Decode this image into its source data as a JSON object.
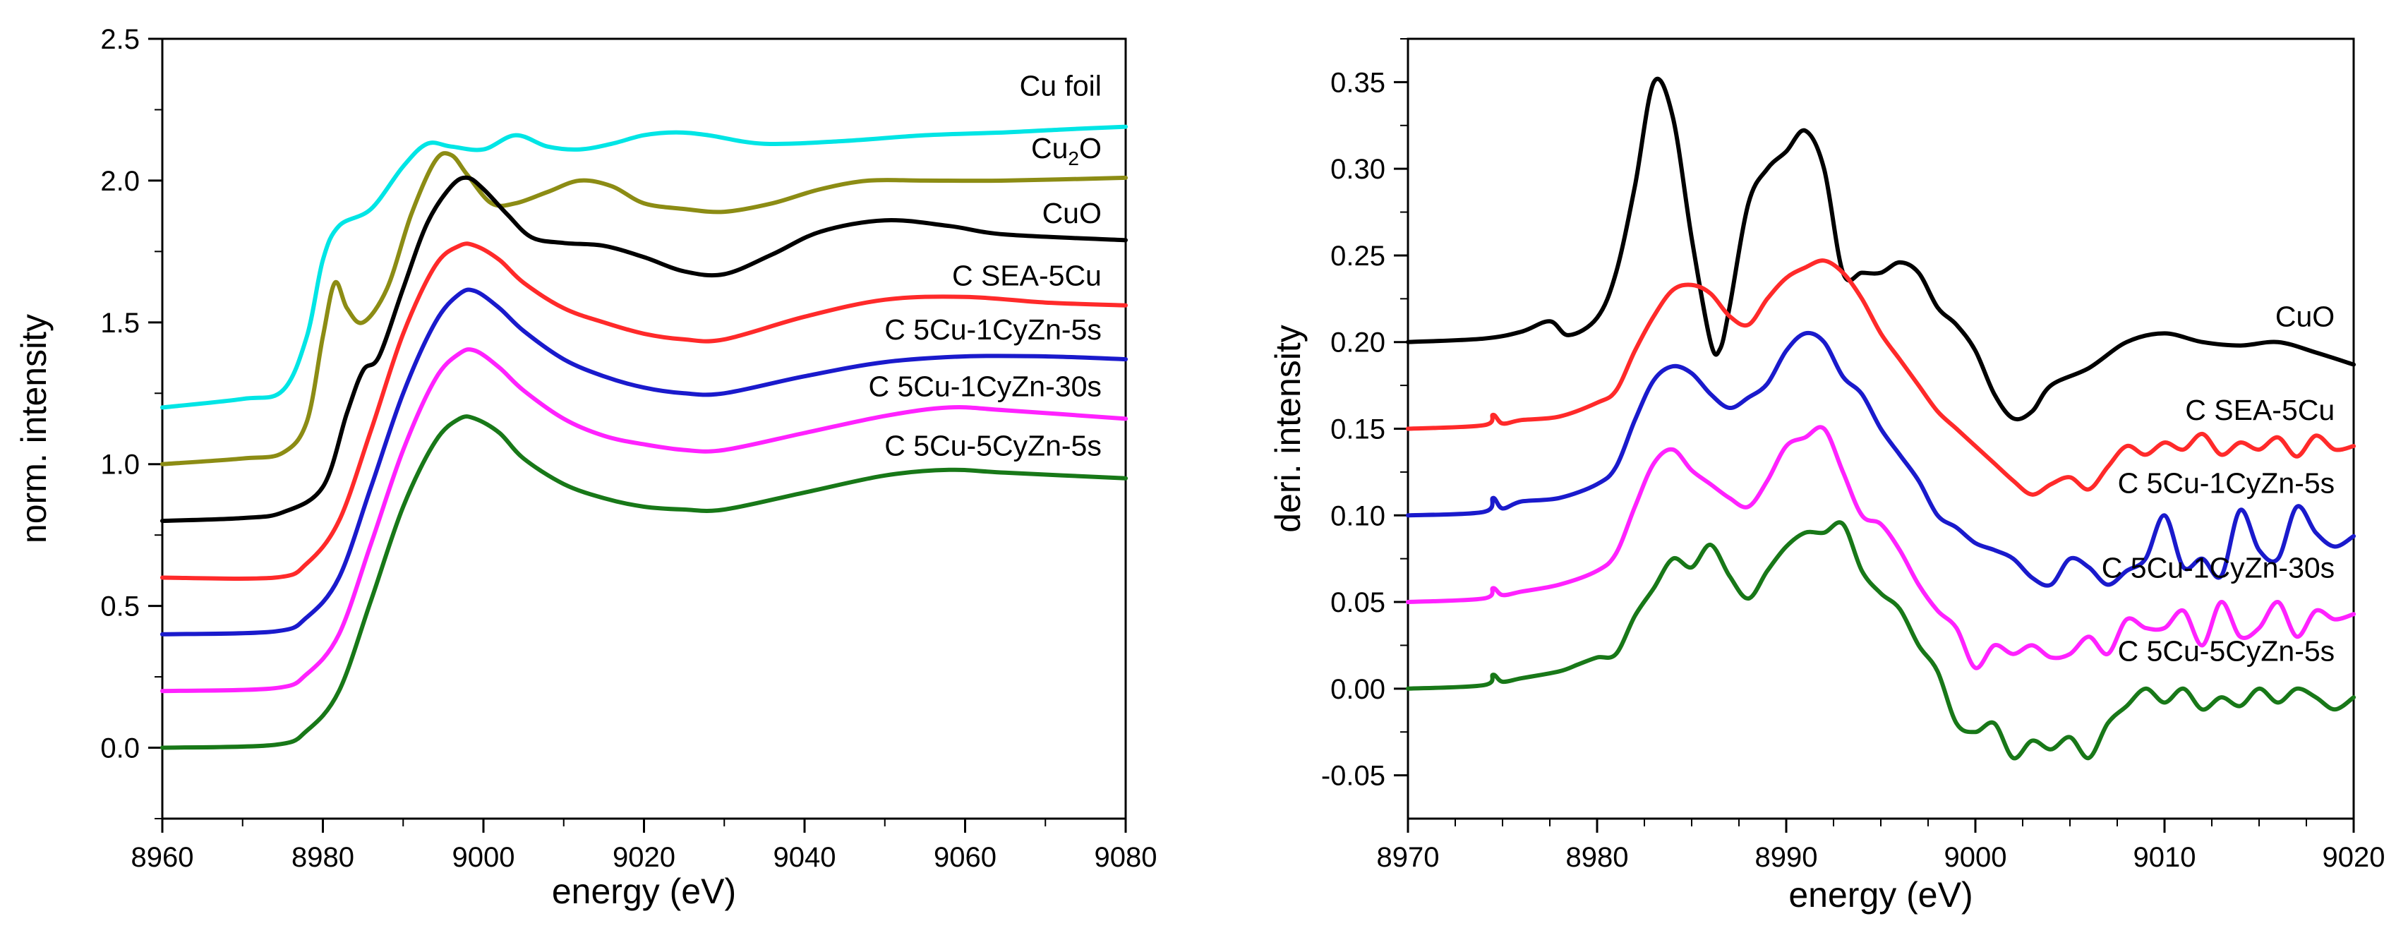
{
  "chart_data": [
    {
      "type": "line",
      "xlabel": "energy (eV)",
      "ylabel": "norm. intensity",
      "xlim": [
        8960,
        9080
      ],
      "ylim": [
        -0.25,
        2.5
      ],
      "xticks": [
        "8960",
        "8980",
        "9000",
        "9020",
        "9040",
        "9060",
        "9080"
      ],
      "yticks": [
        "0.0",
        "0.5",
        "1.0",
        "1.5",
        "2.0",
        "2.5"
      ],
      "series": [
        {
          "name": "Cu foil",
          "name_main": "Cu foil",
          "name_sub": "",
          "name_tail": "",
          "color": "#00e5e5",
          "label_x": 9077,
          "label_y": 2.3,
          "x": [
            8960,
            8970,
            8975,
            8978,
            8980,
            8982,
            8986,
            8990,
            8993,
            8996,
            9000,
            9004,
            9008,
            9012,
            9016,
            9020,
            9024,
            9028,
            9035,
            9045,
            9055,
            9065,
            9072,
            9080
          ],
          "y": [
            1.2,
            1.23,
            1.26,
            1.45,
            1.72,
            1.84,
            1.9,
            2.05,
            2.13,
            2.12,
            2.11,
            2.16,
            2.12,
            2.11,
            2.13,
            2.16,
            2.17,
            2.16,
            2.13,
            2.14,
            2.16,
            2.17,
            2.18,
            2.19
          ]
        },
        {
          "name": "Cu2O",
          "name_main": "Cu",
          "name_sub": "2",
          "name_tail": "O",
          "color": "#8c8c14",
          "label_x": 9077,
          "label_y": 2.08,
          "x": [
            8960,
            8970,
            8975,
            8978,
            8980,
            8981.5,
            8983,
            8985,
            8988,
            8991,
            8994,
            8996,
            8998,
            9001,
            9004,
            9008,
            9012,
            9016,
            9020,
            9025,
            9030,
            9036,
            9042,
            9048,
            9055,
            9065,
            9080
          ],
          "y": [
            1.0,
            1.02,
            1.04,
            1.15,
            1.45,
            1.64,
            1.55,
            1.5,
            1.62,
            1.88,
            2.07,
            2.09,
            2.02,
            1.92,
            1.92,
            1.96,
            2.0,
            1.98,
            1.92,
            1.9,
            1.89,
            1.92,
            1.97,
            2.0,
            2.0,
            2.0,
            2.01
          ]
        },
        {
          "name": "CuO",
          "name_main": "CuO",
          "name_sub": "",
          "name_tail": "",
          "color": "#000000",
          "label_x": 9077,
          "label_y": 1.85,
          "x": [
            8960,
            8970,
            8975,
            8980,
            8983,
            8985,
            8987,
            8990,
            8993,
            8996,
            8998,
            9000,
            9003,
            9006,
            9010,
            9015,
            9020,
            9025,
            9030,
            9036,
            9042,
            9050,
            9058,
            9065,
            9080
          ],
          "y": [
            0.8,
            0.81,
            0.83,
            0.92,
            1.18,
            1.33,
            1.38,
            1.62,
            1.85,
            1.98,
            2.01,
            1.97,
            1.88,
            1.8,
            1.78,
            1.77,
            1.73,
            1.68,
            1.67,
            1.74,
            1.82,
            1.86,
            1.84,
            1.81,
            1.79
          ]
        },
        {
          "name": "C SEA-5Cu",
          "name_main": "C SEA-5Cu",
          "name_sub": "",
          "name_tail": "",
          "color": "#ff2a2a",
          "label_x": 9077,
          "label_y": 1.63,
          "x": [
            8960,
            8974,
            8978,
            8982,
            8986,
            8990,
            8994,
            8997,
            8999,
            9002,
            9005,
            9010,
            9015,
            9020,
            9025,
            9030,
            9040,
            9050,
            9060,
            9070,
            9080
          ],
          "y": [
            0.6,
            0.6,
            0.65,
            0.8,
            1.12,
            1.46,
            1.7,
            1.77,
            1.77,
            1.72,
            1.64,
            1.55,
            1.5,
            1.46,
            1.44,
            1.44,
            1.52,
            1.58,
            1.59,
            1.57,
            1.56
          ]
        },
        {
          "name": "C 5Cu-1CyZn-5s",
          "name_main": "C 5Cu-1CyZn-5s",
          "name_sub": "",
          "name_tail": "",
          "color": "#1a1acc",
          "label_x": 9077,
          "label_y": 1.44,
          "x": [
            8960,
            8974,
            8978,
            8982,
            8986,
            8990,
            8994,
            8997,
            8999,
            9002,
            9005,
            9010,
            9015,
            9020,
            9025,
            9030,
            9040,
            9050,
            9060,
            9070,
            9080
          ],
          "y": [
            0.4,
            0.41,
            0.46,
            0.6,
            0.92,
            1.25,
            1.5,
            1.6,
            1.61,
            1.55,
            1.47,
            1.37,
            1.31,
            1.27,
            1.25,
            1.25,
            1.31,
            1.36,
            1.38,
            1.38,
            1.37
          ]
        },
        {
          "name": "C 5Cu-1CyZn-30s",
          "name_main": "C 5Cu-1CyZn-30s",
          "name_sub": "",
          "name_tail": "",
          "color": "#ff22ff",
          "label_x": 9077,
          "label_y": 1.24,
          "x": [
            8960,
            8974,
            8978,
            8982,
            8986,
            8990,
            8994,
            8997,
            8999,
            9002,
            9005,
            9010,
            9015,
            9020,
            9025,
            9030,
            9040,
            9050,
            9058,
            9065,
            9080
          ],
          "y": [
            0.2,
            0.21,
            0.26,
            0.4,
            0.72,
            1.05,
            1.3,
            1.39,
            1.4,
            1.34,
            1.26,
            1.16,
            1.1,
            1.07,
            1.05,
            1.05,
            1.11,
            1.17,
            1.2,
            1.19,
            1.16
          ]
        },
        {
          "name": "C 5Cu-5CyZn-5s",
          "name_main": "C 5Cu-5CyZn-5s",
          "name_sub": "",
          "name_tail": "",
          "color": "#187818",
          "label_x": 9077,
          "label_y": 1.03,
          "x": [
            8960,
            8974,
            8978,
            8982,
            8986,
            8990,
            8994,
            8997,
            8999,
            9002,
            9005,
            9010,
            9015,
            9020,
            9025,
            9030,
            9040,
            9050,
            9058,
            9065,
            9080
          ],
          "y": [
            0.0,
            0.01,
            0.06,
            0.2,
            0.52,
            0.85,
            1.08,
            1.16,
            1.16,
            1.11,
            1.02,
            0.93,
            0.88,
            0.85,
            0.84,
            0.84,
            0.9,
            0.96,
            0.98,
            0.97,
            0.95
          ]
        }
      ]
    },
    {
      "type": "line",
      "xlabel": "energy (eV)",
      "ylabel": "deri. intensity",
      "xlim": [
        8970,
        9020
      ],
      "ylim": [
        -0.075,
        0.375
      ],
      "xticks": [
        "8970",
        "8980",
        "8990",
        "9000",
        "9010",
        "9020"
      ],
      "yticks": [
        "-0.05",
        "0.00",
        "0.05",
        "0.10",
        "0.15",
        "0.20",
        "0.25",
        "0.30",
        "0.35"
      ],
      "series": [
        {
          "name": "CuO",
          "name_main": "CuO",
          "name_sub": "",
          "name_tail": "",
          "color": "#000000",
          "label_x": 9019,
          "label_y": 0.209,
          "x": [
            8970,
            8974,
            8976,
            8977.5,
            8978.5,
            8980,
            8981,
            8982,
            8983,
            8984,
            8985,
            8986,
            8986.5,
            8987,
            8988,
            8989,
            8990,
            8991,
            8992,
            8993,
            8994,
            8995,
            8996,
            8997,
            8998,
            8999,
            9000,
            9001,
            9002,
            9003,
            9004,
            9006,
            9008,
            9010,
            9012,
            9014,
            9016,
            9018,
            9020
          ],
          "y": [
            0.2,
            0.202,
            0.206,
            0.212,
            0.204,
            0.214,
            0.24,
            0.29,
            0.35,
            0.33,
            0.26,
            0.2,
            0.196,
            0.22,
            0.28,
            0.3,
            0.31,
            0.322,
            0.3,
            0.24,
            0.24,
            0.24,
            0.246,
            0.24,
            0.22,
            0.21,
            0.195,
            0.17,
            0.156,
            0.16,
            0.175,
            0.185,
            0.2,
            0.205,
            0.2,
            0.198,
            0.2,
            0.194,
            0.187
          ]
        },
        {
          "name": "C SEA-5Cu",
          "name_main": "C SEA-5Cu",
          "name_sub": "",
          "name_tail": "",
          "color": "#ff2a2a",
          "label_x": 9019,
          "label_y": 0.155,
          "x": [
            8970,
            8974,
            8974.5,
            8975,
            8976,
            8978,
            8980,
            8981,
            8982,
            8983,
            8984,
            8985,
            8986,
            8987,
            8988,
            8989,
            8990,
            8991,
            8992,
            8993,
            8994,
            8995,
            8996,
            8997,
            8998,
            8999,
            9000,
            9001,
            9002,
            9003,
            9004,
            9005,
            9006,
            9007,
            9008,
            9009,
            9010,
            9011,
            9012,
            9013,
            9014,
            9015,
            9016,
            9017,
            9018,
            9019,
            9020
          ],
          "y": [
            0.15,
            0.152,
            0.158,
            0.153,
            0.155,
            0.157,
            0.165,
            0.172,
            0.195,
            0.215,
            0.23,
            0.233,
            0.228,
            0.215,
            0.21,
            0.225,
            0.237,
            0.243,
            0.247,
            0.24,
            0.225,
            0.205,
            0.19,
            0.175,
            0.16,
            0.15,
            0.14,
            0.13,
            0.12,
            0.112,
            0.118,
            0.122,
            0.115,
            0.128,
            0.14,
            0.135,
            0.142,
            0.138,
            0.147,
            0.135,
            0.142,
            0.138,
            0.145,
            0.134,
            0.146,
            0.138,
            0.14
          ]
        },
        {
          "name": "C 5Cu-1CyZn-5s",
          "name_main": "C 5Cu-1CyZn-5s",
          "name_sub": "",
          "name_tail": "",
          "color": "#1a1acc",
          "label_x": 9019,
          "label_y": 0.113,
          "x": [
            8970,
            8974,
            8974.5,
            8975,
            8976,
            8978,
            8980,
            8981,
            8982,
            8983,
            8984,
            8985,
            8986,
            8987,
            8988,
            8989,
            8990,
            8991,
            8992,
            8993,
            8994,
            8995,
            8996,
            8997,
            8998,
            8999,
            9000,
            9001,
            9002,
            9003,
            9004,
            9005,
            9006,
            9007,
            9008,
            9009,
            9010,
            9011,
            9012,
            9013,
            9014,
            9015,
            9016,
            9017,
            9018,
            9019,
            9020
          ],
          "y": [
            0.1,
            0.102,
            0.11,
            0.104,
            0.108,
            0.11,
            0.118,
            0.128,
            0.155,
            0.178,
            0.186,
            0.182,
            0.17,
            0.162,
            0.168,
            0.176,
            0.195,
            0.205,
            0.2,
            0.18,
            0.17,
            0.15,
            0.135,
            0.12,
            0.1,
            0.093,
            0.084,
            0.08,
            0.075,
            0.064,
            0.06,
            0.075,
            0.07,
            0.06,
            0.068,
            0.075,
            0.1,
            0.07,
            0.075,
            0.065,
            0.103,
            0.08,
            0.075,
            0.105,
            0.09,
            0.082,
            0.088
          ]
        },
        {
          "name": "C 5Cu-1CyZn-30s",
          "name_main": "C 5Cu-1CyZn-30s",
          "name_sub": "",
          "name_tail": "",
          "color": "#ff22ff",
          "label_x": 9019,
          "label_y": 0.064,
          "x": [
            8970,
            8974,
            8974.5,
            8975,
            8976,
            8978,
            8980,
            8981,
            8982,
            8983,
            8984,
            8985,
            8986,
            8987,
            8988,
            8989,
            8990,
            8991,
            8992,
            8993,
            8994,
            8995,
            8996,
            8997,
            8998,
            8999,
            9000,
            9001,
            9002,
            9003,
            9004,
            9005,
            9006,
            9007,
            9008,
            9009,
            9010,
            9011,
            9012,
            9013,
            9014,
            9015,
            9016,
            9017,
            9018,
            9019,
            9020
          ],
          "y": [
            0.05,
            0.052,
            0.058,
            0.054,
            0.056,
            0.06,
            0.068,
            0.078,
            0.105,
            0.13,
            0.138,
            0.126,
            0.118,
            0.11,
            0.105,
            0.12,
            0.14,
            0.145,
            0.15,
            0.125,
            0.1,
            0.095,
            0.08,
            0.06,
            0.045,
            0.035,
            0.012,
            0.025,
            0.02,
            0.025,
            0.018,
            0.02,
            0.03,
            0.02,
            0.04,
            0.035,
            0.035,
            0.045,
            0.025,
            0.05,
            0.03,
            0.035,
            0.05,
            0.03,
            0.045,
            0.04,
            0.043
          ]
        },
        {
          "name": "C 5Cu-5CyZn-5s",
          "name_main": "C 5Cu-5CyZn-5s",
          "name_sub": "",
          "name_tail": "",
          "color": "#187818",
          "label_x": 9019,
          "label_y": 0.016,
          "x": [
            8970,
            8974,
            8974.5,
            8975,
            8976,
            8978,
            8979,
            8980,
            8981,
            8982,
            8983,
            8984,
            8985,
            8986,
            8987,
            8988,
            8989,
            8990,
            8991,
            8992,
            8993,
            8994,
            8995,
            8996,
            8997,
            8998,
            8999,
            9000,
            9001,
            9002,
            9003,
            9004,
            9005,
            9006,
            9007,
            9008,
            9009,
            9010,
            9011,
            9012,
            9013,
            9014,
            9015,
            9016,
            9017,
            9018,
            9019,
            9020
          ],
          "y": [
            0.0,
            0.002,
            0.008,
            0.004,
            0.006,
            0.01,
            0.014,
            0.018,
            0.02,
            0.042,
            0.058,
            0.075,
            0.07,
            0.083,
            0.065,
            0.052,
            0.068,
            0.082,
            0.09,
            0.09,
            0.095,
            0.068,
            0.055,
            0.046,
            0.025,
            0.01,
            -0.02,
            -0.025,
            -0.02,
            -0.04,
            -0.03,
            -0.035,
            -0.028,
            -0.04,
            -0.02,
            -0.01,
            0.0,
            -0.008,
            0.0,
            -0.012,
            -0.005,
            -0.01,
            0.0,
            -0.008,
            0.0,
            -0.005,
            -0.012,
            -0.005
          ]
        }
      ]
    }
  ]
}
